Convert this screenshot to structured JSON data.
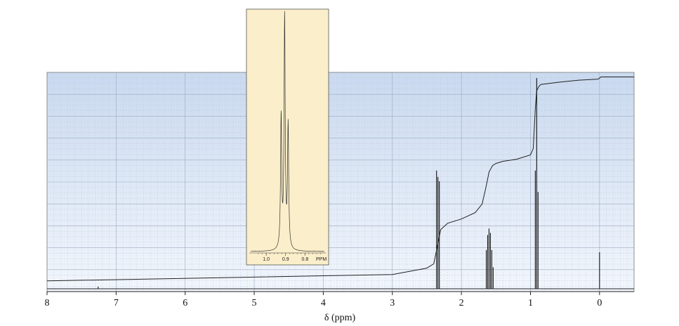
{
  "chart_data": [
    {
      "type": "line",
      "title": "",
      "xlabel": "δ (ppm)",
      "ylabel": "",
      "x_reversed": true,
      "xlim": [
        -0.5,
        8
      ],
      "x_ticks": [
        8,
        7,
        6,
        5,
        4,
        3,
        2,
        1,
        0
      ],
      "x_tick_labels": [
        "8",
        "7",
        "6",
        "5",
        "4",
        "3",
        "2",
        "1",
        "0"
      ],
      "grid": true,
      "background": "#dbe6f5",
      "series": [
        {
          "kind": "spectrum",
          "peaks": [
            {
              "shift": 2.36,
              "height": 0.55
            },
            {
              "shift": 2.34,
              "height": 0.52
            },
            {
              "shift": 2.32,
              "height": 0.5
            },
            {
              "shift": 1.64,
              "height": 0.18
            },
            {
              "shift": 1.62,
              "height": 0.25
            },
            {
              "shift": 1.6,
              "height": 0.28
            },
            {
              "shift": 1.58,
              "height": 0.26
            },
            {
              "shift": 1.56,
              "height": 0.18
            },
            {
              "shift": 1.54,
              "height": 0.1
            },
            {
              "shift": 0.93,
              "height": 0.55
            },
            {
              "shift": 0.91,
              "height": 0.98
            },
            {
              "shift": 0.89,
              "height": 0.45
            },
            {
              "shift": 0.0,
              "height": 0.17
            },
            {
              "shift": 7.26,
              "height": 0.01
            }
          ]
        },
        {
          "kind": "integral",
          "x": [
            8.0,
            3.0,
            2.5,
            2.4,
            2.35,
            2.3,
            2.2,
            2.0,
            1.8,
            1.7,
            1.65,
            1.6,
            1.55,
            1.5,
            1.4,
            1.2,
            1.0,
            0.96,
            0.93,
            0.91,
            0.88,
            0.85,
            0.6,
            0.3,
            0.02,
            -0.02,
            -0.5
          ],
          "y": [
            0.04,
            0.07,
            0.1,
            0.12,
            0.2,
            0.28,
            0.31,
            0.33,
            0.36,
            0.4,
            0.47,
            0.55,
            0.58,
            0.59,
            0.6,
            0.61,
            0.63,
            0.66,
            0.85,
            0.93,
            0.95,
            0.96,
            0.97,
            0.98,
            0.985,
            0.995,
            0.995
          ]
        }
      ]
    },
    {
      "type": "line",
      "title": "",
      "xlabel": "PPM",
      "x_reversed": true,
      "xlim": [
        0.7,
        1.08
      ],
      "x_ticks": [
        1.0,
        0.9,
        0.8
      ],
      "x_tick_labels": [
        "1.0",
        "0.9",
        "0.8"
      ],
      "background": "#fbeeca",
      "series": [
        {
          "kind": "spectrum",
          "peaks": [
            {
              "shift": 0.923,
              "height": 0.57
            },
            {
              "shift": 0.905,
              "height": 1.0
            },
            {
              "shift": 0.887,
              "height": 0.53
            }
          ]
        }
      ]
    }
  ]
}
